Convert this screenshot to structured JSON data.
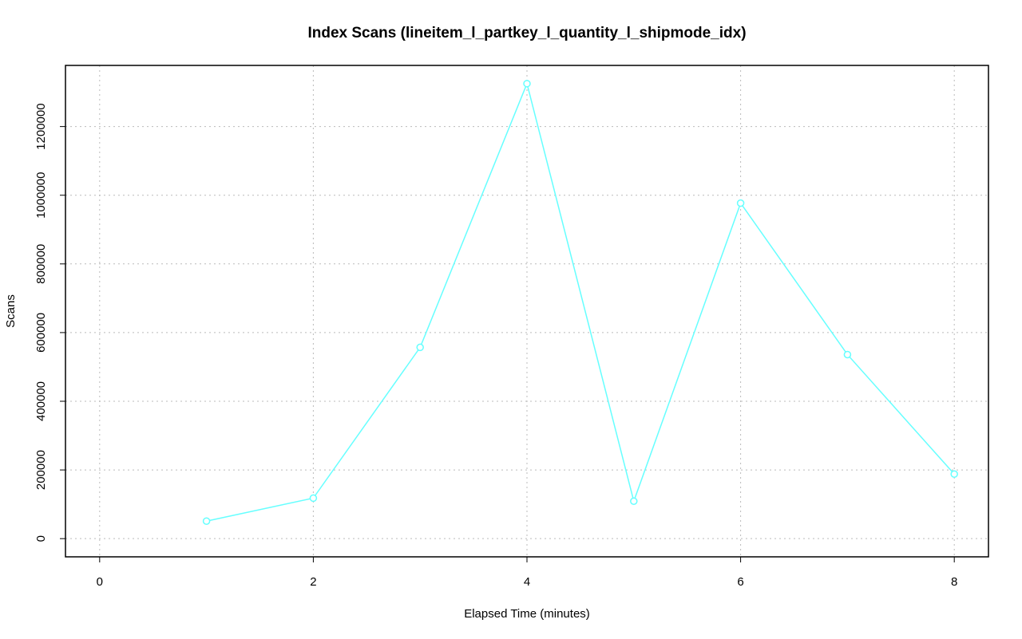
{
  "chart_data": {
    "type": "line",
    "title": "Index Scans (lineitem_l_partkey_l_quantity_l_shipmode_idx)",
    "x_label": "Elapsed Time (minutes)",
    "y_label": "Scans",
    "x": [
      1,
      2,
      3,
      4,
      5,
      6,
      7,
      8
    ],
    "values": [
      51000,
      118000,
      557000,
      1325000,
      109000,
      977000,
      536000,
      188000
    ],
    "color": "#66ffff",
    "xlim": [
      -0.32,
      8.32
    ],
    "xticks": [
      0,
      2,
      4,
      6,
      8
    ],
    "ylim": [
      -53000,
      1378000
    ],
    "yticks": [
      0,
      200000,
      400000,
      600000,
      800000,
      1000000,
      1200000
    ],
    "grid": true
  }
}
